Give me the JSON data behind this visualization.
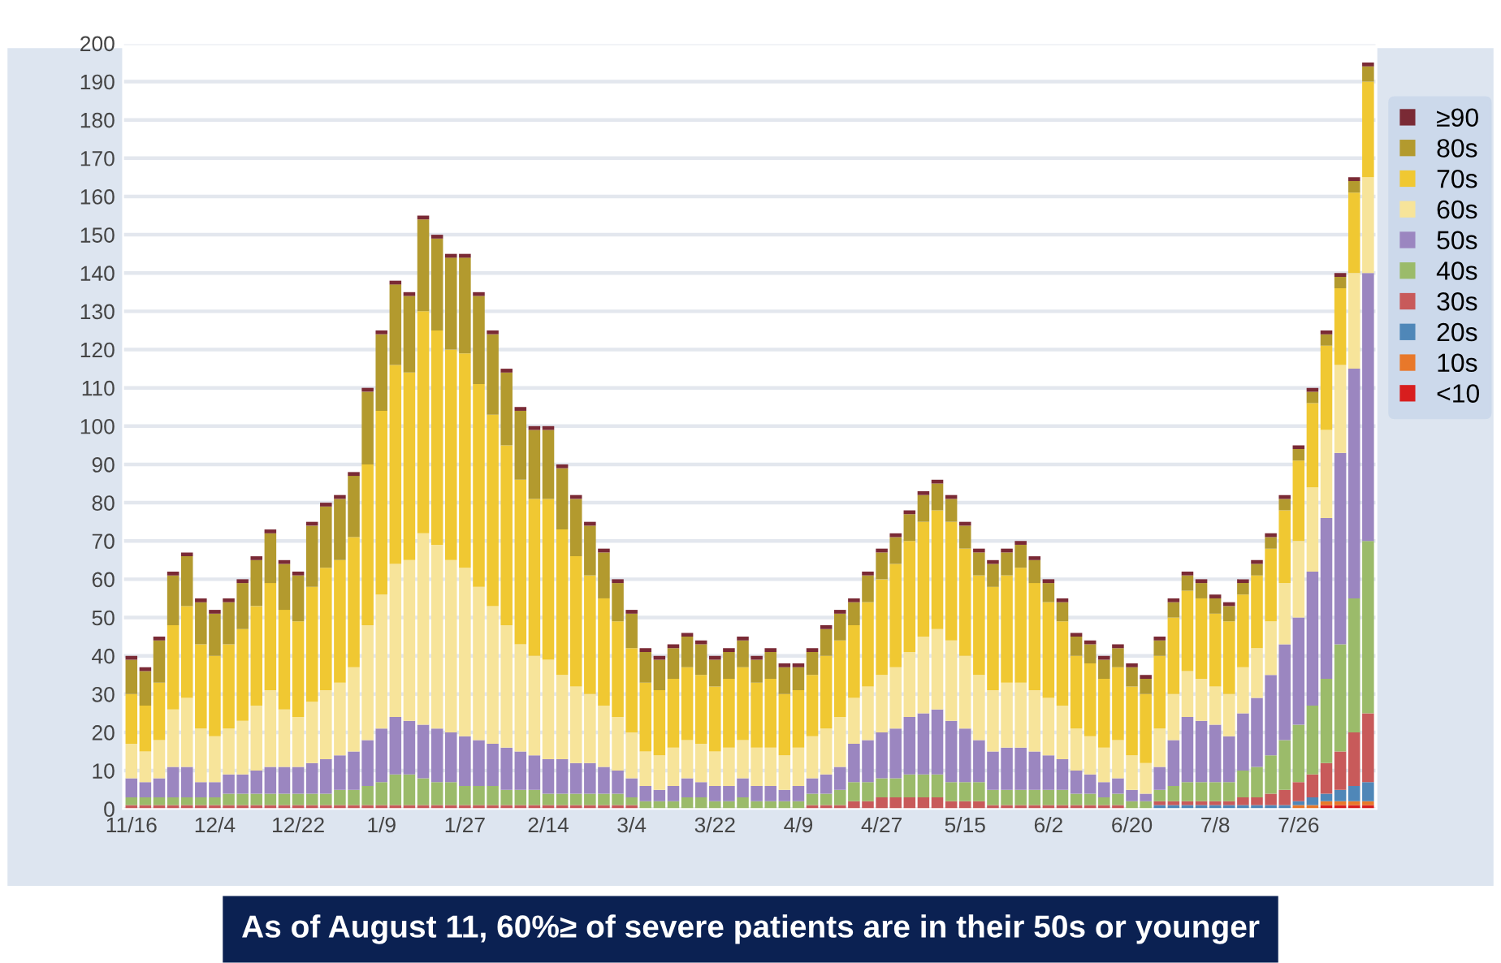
{
  "chart_data": {
    "type": "bar",
    "stacked": true,
    "title": "As of August 11, 60%≥ of severe patients are in their 50s or younger",
    "categories": [
      "11/16",
      null,
      null,
      null,
      null,
      null,
      "12/4",
      null,
      null,
      null,
      null,
      null,
      "12/22",
      null,
      null,
      null,
      null,
      null,
      "1/9",
      null,
      null,
      null,
      null,
      null,
      "1/27",
      null,
      null,
      null,
      null,
      null,
      "2/14",
      null,
      null,
      null,
      null,
      null,
      "3/4",
      null,
      null,
      null,
      null,
      null,
      "3/22",
      null,
      null,
      null,
      null,
      null,
      "4/9",
      null,
      null,
      null,
      null,
      null,
      "4/27",
      null,
      null,
      null,
      null,
      null,
      "5/15",
      null,
      null,
      null,
      null,
      null,
      "6/2",
      null,
      null,
      null,
      null,
      null,
      "6/20",
      null,
      null,
      null,
      null,
      null,
      "7/8",
      null,
      null,
      null,
      null,
      null,
      "7/26",
      null,
      null,
      null,
      null,
      null
    ],
    "series": [
      {
        "name": "<10",
        "color": "#d81e1e",
        "values": [
          0,
          0,
          0,
          0,
          0,
          0,
          0,
          0,
          0,
          0,
          0,
          0,
          0,
          0,
          0,
          0,
          0,
          0,
          0,
          0,
          0,
          0,
          0,
          0,
          0,
          0,
          0,
          0,
          0,
          0,
          0,
          0,
          0,
          0,
          0,
          0,
          0,
          0,
          0,
          0,
          0,
          0,
          0,
          0,
          0,
          0,
          0,
          0,
          0,
          0,
          0,
          0,
          0,
          0,
          0,
          0,
          0,
          0,
          0,
          0,
          0,
          0,
          0,
          0,
          0,
          0,
          0,
          0,
          0,
          0,
          0,
          0,
          0,
          0,
          0,
          0,
          0,
          0,
          0,
          0,
          0,
          0,
          0,
          0,
          0,
          0,
          1,
          1,
          1,
          1
        ]
      },
      {
        "name": "10s",
        "color": "#e8782a",
        "values": [
          0,
          0,
          0,
          0,
          0,
          0,
          0,
          0,
          0,
          0,
          0,
          0,
          0,
          0,
          0,
          0,
          0,
          0,
          0,
          0,
          0,
          0,
          0,
          0,
          0,
          0,
          0,
          0,
          0,
          0,
          0,
          0,
          0,
          0,
          0,
          0,
          0,
          0,
          0,
          0,
          0,
          0,
          0,
          0,
          0,
          0,
          0,
          0,
          0,
          0,
          0,
          0,
          0,
          0,
          0,
          0,
          0,
          0,
          0,
          0,
          0,
          0,
          0,
          0,
          0,
          0,
          0,
          0,
          0,
          0,
          0,
          0,
          0,
          0,
          0,
          0,
          0,
          0,
          0,
          0,
          0,
          0,
          0,
          0,
          1,
          1,
          1,
          1,
          1,
          1
        ]
      },
      {
        "name": "20s",
        "color": "#4f87b8",
        "values": [
          0,
          0,
          0,
          0,
          0,
          0,
          0,
          0,
          0,
          0,
          0,
          0,
          0,
          0,
          0,
          0,
          0,
          0,
          0,
          0,
          0,
          0,
          0,
          0,
          0,
          0,
          0,
          0,
          0,
          0,
          0,
          0,
          0,
          0,
          0,
          0,
          0,
          0,
          0,
          0,
          0,
          0,
          0,
          0,
          0,
          0,
          0,
          0,
          0,
          0,
          0,
          0,
          0,
          0,
          0,
          0,
          0,
          0,
          0,
          0,
          0,
          0,
          0,
          0,
          0,
          0,
          0,
          0,
          0,
          0,
          0,
          0,
          0,
          0,
          1,
          1,
          1,
          1,
          1,
          1,
          1,
          1,
          1,
          1,
          1,
          2,
          2,
          3,
          4,
          5
        ]
      },
      {
        "name": "30s",
        "color": "#c85a5a",
        "values": [
          1,
          1,
          1,
          1,
          1,
          1,
          1,
          1,
          1,
          1,
          1,
          1,
          1,
          1,
          1,
          1,
          1,
          1,
          1,
          1,
          1,
          1,
          1,
          1,
          1,
          1,
          1,
          1,
          1,
          1,
          1,
          1,
          1,
          1,
          1,
          1,
          1,
          0,
          0,
          0,
          0,
          0,
          0,
          0,
          0,
          0,
          0,
          0,
          0,
          1,
          1,
          1,
          2,
          2,
          3,
          3,
          3,
          3,
          3,
          2,
          2,
          2,
          1,
          1,
          1,
          1,
          1,
          1,
          1,
          1,
          1,
          1,
          0,
          0,
          1,
          1,
          1,
          1,
          1,
          1,
          2,
          2,
          3,
          4,
          5,
          6,
          8,
          10,
          14,
          18
        ]
      },
      {
        "name": "40s",
        "color": "#9bbb6a",
        "values": [
          2,
          2,
          2,
          2,
          2,
          2,
          2,
          3,
          3,
          3,
          3,
          3,
          3,
          3,
          3,
          4,
          4,
          5,
          6,
          8,
          8,
          7,
          6,
          6,
          5,
          5,
          5,
          4,
          4,
          4,
          3,
          3,
          3,
          3,
          3,
          3,
          2,
          2,
          2,
          2,
          3,
          3,
          2,
          2,
          3,
          2,
          2,
          2,
          2,
          3,
          3,
          4,
          5,
          5,
          5,
          5,
          6,
          6,
          6,
          5,
          5,
          5,
          4,
          4,
          4,
          4,
          4,
          4,
          3,
          3,
          2,
          3,
          2,
          2,
          3,
          4,
          5,
          5,
          5,
          5,
          7,
          8,
          10,
          13,
          15,
          18,
          22,
          28,
          35,
          45
        ]
      },
      {
        "name": "50s",
        "color": "#9b86c0",
        "values": [
          5,
          4,
          5,
          8,
          8,
          4,
          4,
          5,
          5,
          6,
          7,
          7,
          7,
          8,
          9,
          9,
          10,
          12,
          14,
          15,
          14,
          14,
          14,
          13,
          13,
          12,
          11,
          11,
          10,
          9,
          9,
          9,
          8,
          8,
          7,
          6,
          5,
          4,
          3,
          4,
          5,
          4,
          4,
          4,
          5,
          4,
          4,
          3,
          4,
          4,
          5,
          6,
          10,
          11,
          12,
          13,
          15,
          16,
          17,
          16,
          14,
          11,
          10,
          11,
          11,
          10,
          9,
          8,
          6,
          5,
          4,
          4,
          3,
          2,
          6,
          12,
          17,
          16,
          15,
          12,
          15,
          18,
          21,
          25,
          28,
          35,
          42,
          50,
          60,
          70
        ]
      },
      {
        "name": "60s",
        "color": "#f7e49a",
        "values": [
          9,
          8,
          10,
          15,
          18,
          14,
          12,
          12,
          14,
          17,
          20,
          15,
          13,
          16,
          18,
          19,
          22,
          30,
          35,
          40,
          42,
          50,
          48,
          45,
          44,
          40,
          36,
          32,
          28,
          26,
          26,
          22,
          20,
          18,
          16,
          14,
          12,
          9,
          9,
          10,
          10,
          10,
          9,
          10,
          10,
          10,
          10,
          9,
          10,
          11,
          12,
          13,
          12,
          14,
          15,
          16,
          17,
          20,
          21,
          21,
          19,
          17,
          16,
          17,
          17,
          16,
          15,
          14,
          11,
          10,
          9,
          10,
          9,
          8,
          10,
          12,
          12,
          11,
          10,
          11,
          12,
          13,
          14,
          16,
          20,
          22,
          23,
          23,
          25,
          25
        ]
      },
      {
        "name": "70s",
        "color": "#f0c832",
        "values": [
          13,
          12,
          15,
          22,
          24,
          22,
          21,
          22,
          24,
          26,
          28,
          26,
          25,
          30,
          32,
          32,
          34,
          42,
          48,
          52,
          49,
          58,
          56,
          55,
          56,
          53,
          50,
          47,
          43,
          41,
          42,
          38,
          34,
          31,
          28,
          25,
          22,
          18,
          17,
          18,
          19,
          18,
          17,
          18,
          19,
          17,
          18,
          16,
          15,
          16,
          19,
          20,
          19,
          22,
          25,
          27,
          29,
          30,
          31,
          31,
          28,
          26,
          27,
          28,
          30,
          28,
          25,
          22,
          19,
          19,
          18,
          19,
          18,
          18,
          19,
          20,
          21,
          21,
          19,
          19,
          19,
          19,
          19,
          19,
          21,
          22,
          22,
          20,
          21,
          25
        ]
      },
      {
        "name": "80s",
        "color": "#b39a2e",
        "values": [
          9,
          9,
          11,
          13,
          13,
          11,
          11,
          11,
          12,
          12,
          13,
          12,
          12,
          16,
          16,
          16,
          16,
          19,
          20,
          21,
          20,
          24,
          24,
          24,
          25,
          23,
          21,
          19,
          18,
          18,
          18,
          16,
          15,
          13,
          12,
          10,
          9,
          8,
          8,
          8,
          8,
          8,
          7,
          7,
          7,
          6,
          7,
          7,
          6,
          6,
          7,
          7,
          6,
          7,
          7,
          7,
          7,
          7,
          7,
          6,
          6,
          6,
          6,
          6,
          6,
          6,
          5,
          5,
          5,
          5,
          5,
          5,
          5,
          4,
          4,
          4,
          4,
          4,
          4,
          4,
          3,
          3,
          3,
          3,
          3,
          3,
          3,
          3,
          3,
          4
        ]
      },
      {
        "name": "≥90",
        "color": "#7a2a35",
        "values": [
          1,
          1,
          1,
          1,
          1,
          1,
          1,
          1,
          1,
          1,
          1,
          1,
          1,
          1,
          1,
          1,
          1,
          1,
          1,
          1,
          1,
          1,
          1,
          1,
          1,
          1,
          1,
          1,
          1,
          1,
          1,
          1,
          1,
          1,
          1,
          1,
          1,
          1,
          1,
          1,
          1,
          1,
          1,
          1,
          1,
          1,
          1,
          1,
          1,
          1,
          1,
          1,
          1,
          1,
          1,
          1,
          1,
          1,
          1,
          1,
          1,
          1,
          1,
          1,
          1,
          1,
          1,
          1,
          1,
          1,
          1,
          1,
          1,
          1,
          1,
          1,
          1,
          1,
          1,
          1,
          1,
          1,
          1,
          1,
          1,
          1,
          1,
          1,
          1,
          1
        ]
      }
    ],
    "ylim": [
      0,
      200
    ],
    "yticks": [
      0,
      10,
      20,
      30,
      40,
      50,
      60,
      70,
      80,
      90,
      100,
      110,
      120,
      130,
      140,
      150,
      160,
      170,
      180,
      190,
      200
    ],
    "grid": "y",
    "legend": "right"
  }
}
